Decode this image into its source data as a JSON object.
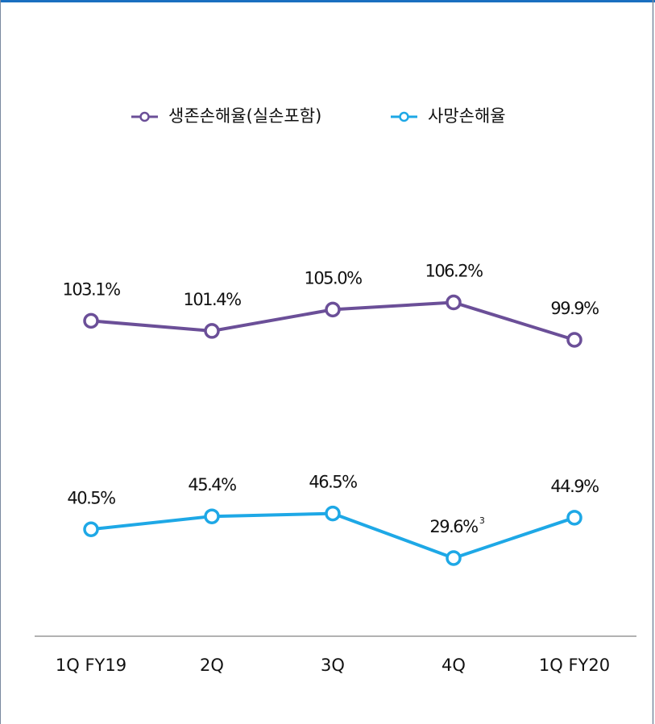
{
  "chart_data": {
    "type": "line",
    "categories": [
      "1Q FY19",
      "2Q",
      "3Q",
      "4Q",
      "1Q FY20"
    ],
    "series": [
      {
        "name": "생존손해율(실손포함)",
        "color": "#6b4f98",
        "values": [
          103.1,
          101.4,
          105.0,
          106.2,
          99.9
        ],
        "value_labels": [
          "103.1%",
          "101.4%",
          "105.0%",
          "106.2%",
          "99.9%"
        ]
      },
      {
        "name": "사망손해율",
        "color": "#1ea8e6",
        "axis": "y2",
        "values": [
          40.5,
          45.4,
          46.5,
          29.6,
          44.9
        ],
        "value_labels": [
          "40.5%",
          "45.4%",
          "46.5%",
          "29.6%",
          "44.9%"
        ]
      }
    ],
    "annotations": [
      "3"
    ],
    "ylim": [
      50,
      130
    ],
    "y2lim": [
      0,
      180
    ],
    "legend": "top"
  }
}
